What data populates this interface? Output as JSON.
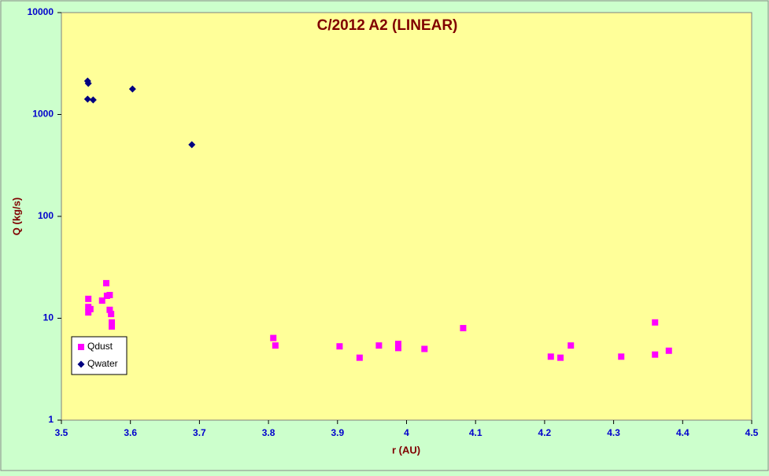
{
  "chart_data": {
    "type": "scatter",
    "title": "C/2012 A2 (LINEAR)",
    "xlabel": "r (AU)",
    "ylabel": "Q (kg/s)",
    "xlim": [
      3.5,
      4.5
    ],
    "xticks": [
      3.5,
      3.6,
      3.7,
      3.8,
      3.9,
      4,
      4.1,
      4.2,
      4.3,
      4.4,
      4.5
    ],
    "ylim": [
      1,
      10000
    ],
    "yticks": [
      1,
      10,
      100,
      1000,
      10000
    ],
    "yscale": "log",
    "legend": "lower left",
    "series": [
      {
        "name": "Qdust",
        "color": "#ff00ff",
        "marker": "square",
        "x": [
          3.539,
          3.539,
          3.539,
          3.542,
          3.559,
          3.565,
          3.566,
          3.57,
          3.57,
          3.572,
          3.573,
          3.573,
          3.807,
          3.81,
          3.903,
          3.932,
          3.96,
          3.988,
          3.988,
          4.026,
          4.082,
          4.209,
          4.223,
          4.238,
          4.311,
          4.36,
          4.36,
          4.38
        ],
        "values": [
          15.5,
          12.9,
          11.4,
          12.3,
          14.9,
          22.1,
          16.6,
          16.9,
          12.1,
          11.0,
          9.1,
          8.3,
          6.4,
          5.4,
          5.3,
          4.1,
          5.4,
          5.6,
          5.1,
          5.0,
          8.0,
          4.2,
          4.1,
          5.4,
          4.2,
          9.1,
          4.4,
          4.8
        ]
      },
      {
        "name": "Qwater",
        "color": "#000080",
        "marker": "diamond",
        "x": [
          3.538,
          3.539,
          3.538,
          3.546,
          3.603,
          3.689
        ],
        "values": [
          2130,
          2020,
          1415,
          1390,
          1780,
          505
        ]
      }
    ]
  }
}
